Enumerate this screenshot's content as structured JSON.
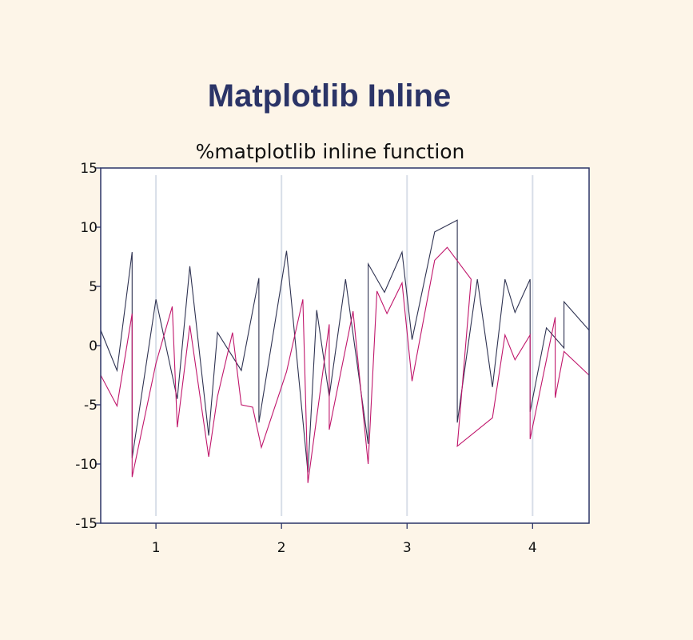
{
  "page": {
    "title": "Matplotlib Inline"
  },
  "colors": {
    "background": "#fdf5e8",
    "title": "#2b3467",
    "axes_frame": "#2b3467",
    "grid": "#d8dee8",
    "series_1": "#2f3352",
    "series_2": "#c0176c"
  },
  "chart_data": {
    "type": "line",
    "title": "%matplotlib inline function",
    "xlabel": "",
    "ylabel": "",
    "xlim": [
      0.56,
      4.45
    ],
    "ylim": [
      -15,
      15
    ],
    "xticks": [
      1,
      2,
      3,
      4
    ],
    "xtick_labels": [
      "1",
      "2",
      "3",
      "4"
    ],
    "yticks": [
      15,
      10,
      5,
      0,
      -5,
      -10,
      -15
    ],
    "ytick_labels": [
      "15",
      "10",
      "5",
      "0",
      "-5",
      "-10",
      "-15"
    ],
    "grid": "vertical",
    "legend": "none",
    "series": [
      {
        "x": [
          0.56,
          0.69,
          0.81,
          0.81,
          1.0,
          1.17,
          1.27,
          1.42,
          1.49,
          1.68,
          1.82,
          1.82,
          2.04,
          2.21,
          2.28,
          2.38,
          2.51,
          2.69,
          2.69,
          2.82,
          2.96,
          3.04,
          3.22,
          3.4,
          3.4,
          3.56,
          3.68,
          3.78,
          3.86,
          3.98,
          3.98,
          4.11,
          4.25,
          4.25,
          4.45
        ],
        "y": [
          1.3,
          -2.1,
          7.9,
          -9.5,
          3.9,
          -4.5,
          6.7,
          -7.6,
          1.1,
          -2.1,
          5.7,
          -6.5,
          8.0,
          -10.7,
          3.0,
          -4.3,
          5.6,
          -8.3,
          6.9,
          4.5,
          7.9,
          0.5,
          9.6,
          10.6,
          -6.5,
          5.6,
          -3.5,
          5.6,
          2.8,
          5.6,
          -5.6,
          1.5,
          -0.2,
          3.7,
          1.3
        ]
      },
      {
        "x": [
          0.56,
          0.69,
          0.81,
          0.81,
          1.0,
          1.13,
          1.17,
          1.27,
          1.42,
          1.49,
          1.61,
          1.68,
          1.77,
          1.84,
          2.04,
          2.17,
          2.21,
          2.38,
          2.38,
          2.57,
          2.69,
          2.76,
          2.84,
          2.96,
          3.04,
          3.22,
          3.32,
          3.51,
          3.4,
          3.68,
          3.78,
          3.86,
          3.98,
          3.98,
          4.18,
          4.18,
          4.25,
          4.45
        ],
        "y": [
          -2.5,
          -5.1,
          2.7,
          -11.1,
          -1.5,
          3.3,
          -6.9,
          1.7,
          -9.4,
          -4.3,
          1.1,
          -5.0,
          -5.2,
          -8.6,
          -2.2,
          3.9,
          -11.6,
          1.8,
          -7.1,
          2.9,
          -10.0,
          4.6,
          2.7,
          5.3,
          -3.0,
          7.2,
          8.3,
          5.6,
          -8.5,
          -6.1,
          0.9,
          -1.2,
          0.9,
          -7.9,
          2.4,
          -4.4,
          -0.5,
          -2.5
        ]
      }
    ]
  }
}
